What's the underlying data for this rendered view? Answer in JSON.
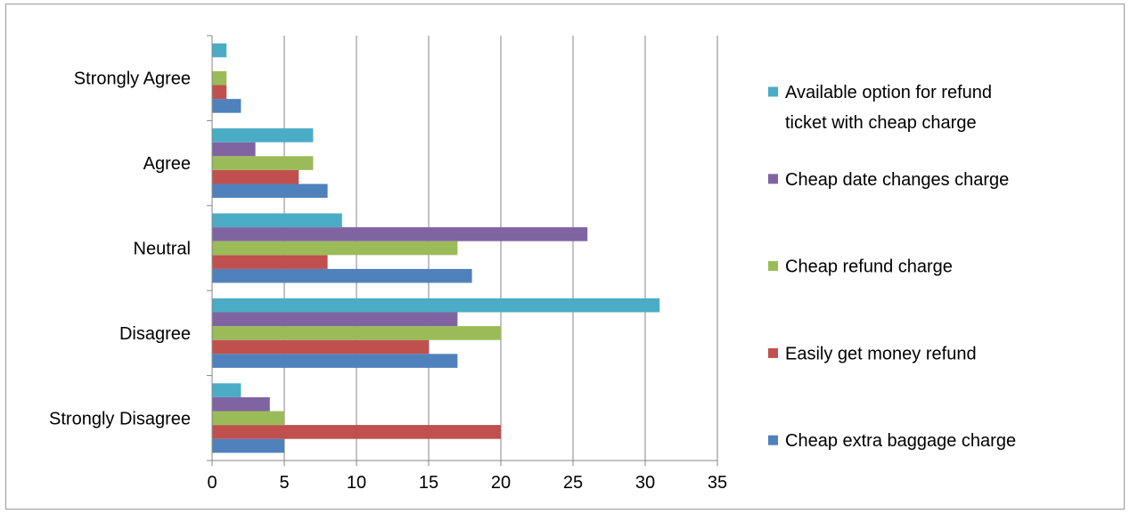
{
  "chart_data": {
    "type": "bar",
    "orientation": "horizontal",
    "categories": [
      "Strongly Disagree",
      "Disagree",
      "Neutral",
      "Agree",
      "Strongly Agree"
    ],
    "series": [
      {
        "name": "Cheap extra baggage charge",
        "color": "#4f81bd",
        "values": [
          5,
          17,
          18,
          8,
          2
        ]
      },
      {
        "name": "Easily get money refund",
        "color": "#c0504d",
        "values": [
          20,
          15,
          8,
          6,
          1
        ]
      },
      {
        "name": "Cheap refund charge",
        "color": "#9bbb59",
        "values": [
          5,
          20,
          17,
          7,
          1
        ]
      },
      {
        "name": "Cheap date changes charge",
        "color": "#8064a2",
        "values": [
          4,
          17,
          26,
          3,
          0
        ]
      },
      {
        "name": "Available option for refund ticket with cheap charge",
        "color": "#4bacc6",
        "values": [
          2,
          31,
          9,
          7,
          1
        ]
      }
    ],
    "xlim": [
      0,
      35
    ],
    "x_ticks": [
      "0",
      "5",
      "10",
      "15",
      "20",
      "25",
      "30",
      "35"
    ],
    "grid": "vertical",
    "legend_position": "right"
  }
}
